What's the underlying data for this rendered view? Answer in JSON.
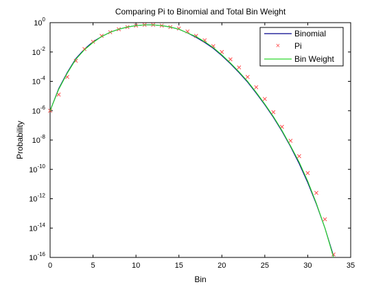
{
  "chart_data": {
    "type": "line",
    "title": "Comparing Pi to Binomial and Total Bin Weight",
    "xlabel": "Bin",
    "ylabel": "Probability",
    "xlim": [
      0,
      35
    ],
    "ylim_log10": [
      -16,
      0
    ],
    "y_scale": "log",
    "x_ticks": [
      0,
      5,
      10,
      15,
      20,
      25,
      30,
      35
    ],
    "y_ticks_exponents": [
      0,
      -2,
      -4,
      -6,
      -8,
      -10,
      -12,
      -14,
      -16
    ],
    "y_tick_base": "10",
    "grid": false,
    "legend_position": "top-right",
    "colors": {
      "binomial": "#00008b",
      "pi": "#ff4d4d",
      "bin_weight": "#2ed82e"
    },
    "series": [
      {
        "name": "Binomial",
        "style": "line",
        "color": "#00008b",
        "x": [
          0,
          1,
          2,
          3,
          4,
          5,
          6,
          7,
          8,
          9,
          10,
          11,
          12,
          13,
          14,
          15,
          16,
          17,
          18,
          19,
          20,
          21,
          22,
          23,
          24,
          25,
          26,
          27,
          28,
          29,
          30,
          31,
          32,
          33
        ],
        "log10_y": [
          -6.0,
          -4.5,
          -3.4,
          -2.45,
          -1.8,
          -1.3,
          -0.95,
          -0.65,
          -0.45,
          -0.3,
          -0.2,
          -0.15,
          -0.15,
          -0.2,
          -0.3,
          -0.45,
          -0.7,
          -1.0,
          -1.35,
          -1.75,
          -2.25,
          -2.8,
          -3.4,
          -4.05,
          -4.8,
          -5.6,
          -6.45,
          -7.4,
          -8.45,
          -9.6,
          -10.9,
          -12.35,
          -14.0,
          -15.9
        ]
      },
      {
        "name": "Pi",
        "style": "marker",
        "color": "#ff4d4d",
        "x": [
          0,
          1,
          2,
          3,
          4,
          5,
          6,
          7,
          8,
          9,
          10,
          11,
          12,
          13,
          14,
          15,
          16,
          17,
          18,
          19,
          20,
          21,
          22,
          23,
          24,
          25,
          26,
          27,
          28,
          29,
          30,
          31,
          32,
          33
        ],
        "log10_y": [
          -6.0,
          -4.9,
          -3.7,
          -2.6,
          -1.8,
          -1.3,
          -0.9,
          -0.65,
          -0.45,
          -0.3,
          -0.2,
          -0.15,
          -0.15,
          -0.2,
          -0.3,
          -0.4,
          -0.6,
          -0.9,
          -1.2,
          -1.6,
          -2.0,
          -2.5,
          -3.05,
          -3.7,
          -4.4,
          -5.2,
          -6.1,
          -7.1,
          -8.05,
          -9.1,
          -10.25,
          -11.6,
          -13.4,
          -15.8
        ]
      },
      {
        "name": "Bin Weight",
        "style": "line",
        "color": "#2ed82e",
        "x": [
          0,
          1,
          2,
          3,
          4,
          5,
          6,
          7,
          8,
          9,
          10,
          11,
          12,
          13,
          14,
          15,
          16,
          17,
          18,
          19,
          20,
          21,
          22,
          23,
          24,
          25,
          26,
          27,
          28,
          29,
          30,
          31,
          32,
          33
        ],
        "log10_y": [
          -6.0,
          -4.55,
          -3.45,
          -2.5,
          -1.85,
          -1.35,
          -0.95,
          -0.65,
          -0.45,
          -0.3,
          -0.2,
          -0.15,
          -0.15,
          -0.2,
          -0.3,
          -0.45,
          -0.7,
          -0.95,
          -1.3,
          -1.7,
          -2.2,
          -2.75,
          -3.35,
          -4.0,
          -4.75,
          -5.55,
          -6.4,
          -7.35,
          -8.4,
          -9.5,
          -10.8,
          -12.3,
          -14.0,
          -16.0
        ]
      }
    ]
  }
}
